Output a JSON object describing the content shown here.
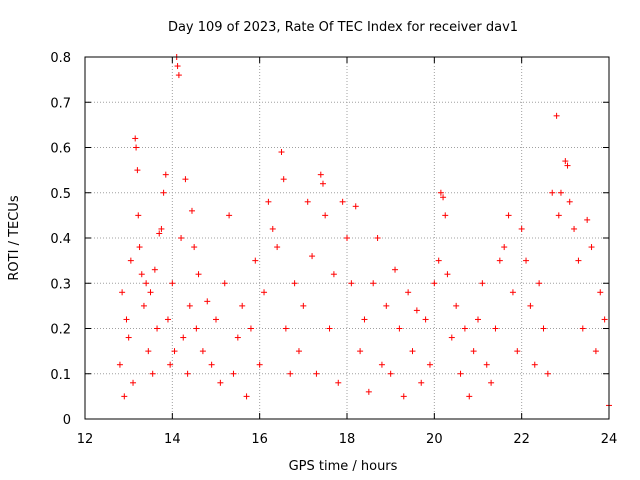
{
  "chart_data": {
    "type": "scatter",
    "title": "Day 109 of 2023, Rate Of TEC Index for receiver dav1",
    "xlabel": "GPS time / hours",
    "ylabel": "ROTI / TECUs",
    "xlim": [
      12,
      24
    ],
    "ylim": [
      0,
      0.8
    ],
    "x_ticks": [
      12,
      14,
      16,
      18,
      20,
      22,
      24
    ],
    "y_ticks": [
      0,
      0.1,
      0.2,
      0.3,
      0.4,
      0.5,
      0.6,
      0.7,
      0.8
    ],
    "x_tick_labels": [
      "12",
      "14",
      "16",
      "18",
      "20",
      "22",
      "24"
    ],
    "y_tick_labels": [
      "0",
      "0.1",
      "0.2",
      "0.3",
      "0.4",
      "0.5",
      "0.6",
      "0.7",
      "0.8"
    ],
    "grid": true,
    "marker": "+",
    "marker_color": "#ff0000",
    "series": [
      {
        "name": "dav1",
        "points": [
          [
            12.8,
            0.12
          ],
          [
            12.85,
            0.28
          ],
          [
            12.9,
            0.05
          ],
          [
            12.95,
            0.22
          ],
          [
            13.0,
            0.18
          ],
          [
            13.05,
            0.35
          ],
          [
            13.1,
            0.08
          ],
          [
            13.15,
            0.62
          ],
          [
            13.17,
            0.6
          ],
          [
            13.2,
            0.55
          ],
          [
            13.22,
            0.45
          ],
          [
            13.25,
            0.38
          ],
          [
            13.3,
            0.32
          ],
          [
            13.35,
            0.25
          ],
          [
            13.4,
            0.3
          ],
          [
            13.45,
            0.15
          ],
          [
            13.5,
            0.28
          ],
          [
            13.55,
            0.1
          ],
          [
            13.6,
            0.33
          ],
          [
            13.65,
            0.2
          ],
          [
            13.7,
            0.41
          ],
          [
            13.75,
            0.42
          ],
          [
            13.8,
            0.5
          ],
          [
            13.85,
            0.54
          ],
          [
            13.9,
            0.22
          ],
          [
            13.95,
            0.12
          ],
          [
            14.0,
            0.3
          ],
          [
            14.05,
            0.15
          ],
          [
            14.1,
            0.8
          ],
          [
            14.12,
            0.78
          ],
          [
            14.15,
            0.76
          ],
          [
            14.2,
            0.4
          ],
          [
            14.25,
            0.18
          ],
          [
            14.3,
            0.53
          ],
          [
            14.35,
            0.1
          ],
          [
            14.4,
            0.25
          ],
          [
            14.45,
            0.46
          ],
          [
            14.5,
            0.38
          ],
          [
            14.55,
            0.2
          ],
          [
            14.6,
            0.32
          ],
          [
            14.7,
            0.15
          ],
          [
            14.8,
            0.26
          ],
          [
            14.9,
            0.12
          ],
          [
            15.0,
            0.22
          ],
          [
            15.1,
            0.08
          ],
          [
            15.2,
            0.3
          ],
          [
            15.3,
            0.45
          ],
          [
            15.4,
            0.1
          ],
          [
            15.5,
            0.18
          ],
          [
            15.6,
            0.25
          ],
          [
            15.7,
            0.05
          ],
          [
            15.8,
            0.2
          ],
          [
            15.9,
            0.35
          ],
          [
            16.0,
            0.12
          ],
          [
            16.1,
            0.28
          ],
          [
            16.2,
            0.48
          ],
          [
            16.3,
            0.42
          ],
          [
            16.4,
            0.38
          ],
          [
            16.5,
            0.59
          ],
          [
            16.55,
            0.53
          ],
          [
            16.6,
            0.2
          ],
          [
            16.7,
            0.1
          ],
          [
            16.8,
            0.3
          ],
          [
            16.9,
            0.15
          ],
          [
            17.0,
            0.25
          ],
          [
            17.1,
            0.48
          ],
          [
            17.2,
            0.36
          ],
          [
            17.3,
            0.1
          ],
          [
            17.4,
            0.54
          ],
          [
            17.45,
            0.52
          ],
          [
            17.5,
            0.45
          ],
          [
            17.6,
            0.2
          ],
          [
            17.7,
            0.32
          ],
          [
            17.8,
            0.08
          ],
          [
            17.9,
            0.48
          ],
          [
            18.0,
            0.4
          ],
          [
            18.1,
            0.3
          ],
          [
            18.2,
            0.47
          ],
          [
            18.3,
            0.15
          ],
          [
            18.4,
            0.22
          ],
          [
            18.5,
            0.06
          ],
          [
            18.6,
            0.3
          ],
          [
            18.7,
            0.4
          ],
          [
            18.8,
            0.12
          ],
          [
            18.9,
            0.25
          ],
          [
            19.0,
            0.1
          ],
          [
            19.1,
            0.33
          ],
          [
            19.2,
            0.2
          ],
          [
            19.3,
            0.05
          ],
          [
            19.4,
            0.28
          ],
          [
            19.5,
            0.15
          ],
          [
            19.6,
            0.24
          ],
          [
            19.7,
            0.08
          ],
          [
            19.8,
            0.22
          ],
          [
            19.9,
            0.12
          ],
          [
            20.0,
            0.3
          ],
          [
            20.1,
            0.35
          ],
          [
            20.15,
            0.5
          ],
          [
            20.2,
            0.49
          ],
          [
            20.25,
            0.45
          ],
          [
            20.3,
            0.32
          ],
          [
            20.4,
            0.18
          ],
          [
            20.5,
            0.25
          ],
          [
            20.6,
            0.1
          ],
          [
            20.7,
            0.2
          ],
          [
            20.8,
            0.05
          ],
          [
            20.9,
            0.15
          ],
          [
            21.0,
            0.22
          ],
          [
            21.1,
            0.3
          ],
          [
            21.2,
            0.12
          ],
          [
            21.3,
            0.08
          ],
          [
            21.4,
            0.2
          ],
          [
            21.5,
            0.35
          ],
          [
            21.6,
            0.38
          ],
          [
            21.7,
            0.45
          ],
          [
            21.8,
            0.28
          ],
          [
            21.9,
            0.15
          ],
          [
            22.0,
            0.42
          ],
          [
            22.1,
            0.35
          ],
          [
            22.2,
            0.25
          ],
          [
            22.3,
            0.12
          ],
          [
            22.4,
            0.3
          ],
          [
            22.5,
            0.2
          ],
          [
            22.6,
            0.1
          ],
          [
            22.7,
            0.5
          ],
          [
            22.8,
            0.67
          ],
          [
            22.85,
            0.45
          ],
          [
            22.9,
            0.5
          ],
          [
            23.0,
            0.57
          ],
          [
            23.05,
            0.56
          ],
          [
            23.1,
            0.48
          ],
          [
            23.2,
            0.42
          ],
          [
            23.3,
            0.35
          ],
          [
            23.4,
            0.2
          ],
          [
            23.5,
            0.44
          ],
          [
            23.6,
            0.38
          ],
          [
            23.7,
            0.15
          ],
          [
            23.8,
            0.28
          ],
          [
            23.9,
            0.22
          ],
          [
            24.0,
            0.03
          ]
        ]
      }
    ]
  }
}
